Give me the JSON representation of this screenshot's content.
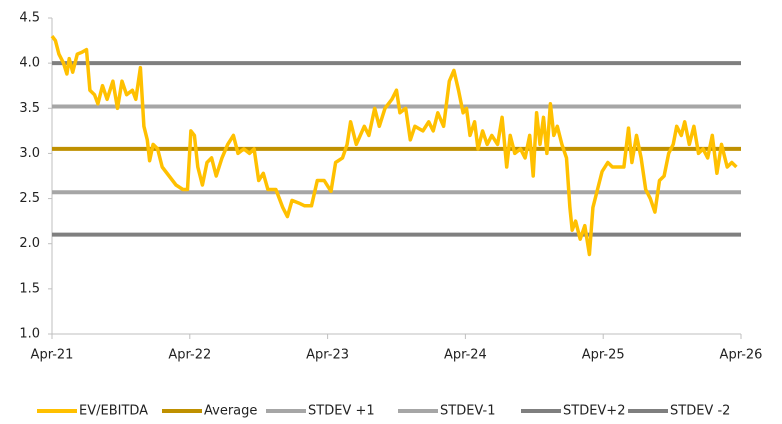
{
  "chart_data": {
    "type": "line",
    "x": [
      0,
      0.3,
      0.6,
      1,
      1.3,
      1.5,
      1.8,
      2.2,
      2.6,
      3.0,
      3.3,
      3.7,
      4,
      4.4,
      4.8,
      5.3,
      5.7,
      6.1,
      6.5,
      7,
      7.3,
      7.7,
      8.0,
      8.3,
      8.5,
      8.8,
      9.2,
      9.6,
      10.2,
      10.8,
      11.4,
      11.8,
      12.1,
      12.4,
      12.7,
      13.1,
      13.5,
      13.9,
      14.3,
      14.8,
      15.3,
      15.8,
      16.2,
      16.7,
      17.2,
      17.6,
      18.0,
      18.4,
      18.8,
      19.5,
      20.1,
      20.5,
      20.9,
      21.5,
      22,
      22.6,
      23.1,
      23.7,
      24.3,
      24.7,
      25.3,
      25.7,
      26,
      26.5,
      27.2,
      27.6,
      28.1,
      28.5,
      29,
      29.6,
      30,
      30.3,
      30.8,
      31.2,
      31.6,
      32.3,
      32.8,
      33.2,
      33.6,
      34.1,
      34.6,
      35,
      35.4,
      35.8,
      36.1,
      36.4,
      36.8,
      37.1,
      37.5,
      37.9,
      38.3,
      38.8,
      39.2,
      39.6,
      39.9,
      40.3,
      40.8,
      41.2,
      41.6,
      41.9,
      42.2,
      42.5,
      42.8,
      43.1,
      43.4,
      43.7,
      44.0,
      44.4,
      44.8,
      45.1,
      45.3,
      45.6,
      46,
      46.4,
      46.8,
      47.1,
      47.5,
      47.9,
      48.4,
      48.8,
      49.3,
      49.8,
      50.2,
      50.5,
      50.9,
      51.3,
      51.7,
      52.1,
      52.5,
      52.9,
      53.3,
      53.7,
      54.1,
      54.4,
      54.8,
      55.1,
      55.5,
      55.9,
      56.3,
      56.7,
      57.1,
      57.5,
      57.9,
      58.3,
      58.8,
      59.2,
      59.6
    ],
    "series": [
      {
        "name": "EV/EBITDA",
        "color": "#ffc000",
        "values": [
          4.3,
          4.25,
          4.1,
          4.0,
          3.88,
          4.05,
          3.9,
          4.1,
          4.12,
          4.15,
          3.7,
          3.65,
          3.55,
          3.75,
          3.6,
          3.8,
          3.5,
          3.8,
          3.65,
          3.7,
          3.6,
          3.95,
          3.3,
          3.15,
          2.92,
          3.1,
          3.05,
          2.85,
          2.75,
          2.65,
          2.6,
          2.6,
          3.25,
          3.2,
          2.85,
          2.65,
          2.9,
          2.95,
          2.75,
          2.95,
          3.1,
          3.2,
          3.0,
          3.05,
          3.0,
          3.05,
          2.7,
          2.78,
          2.6,
          2.6,
          2.4,
          2.3,
          2.48,
          2.45,
          2.42,
          2.42,
          2.7,
          2.7,
          2.58,
          2.9,
          2.95,
          3.1,
          3.35,
          3.1,
          3.3,
          3.2,
          3.5,
          3.3,
          3.5,
          3.6,
          3.7,
          3.45,
          3.5,
          3.15,
          3.3,
          3.25,
          3.35,
          3.25,
          3.45,
          3.3,
          3.8,
          3.92,
          3.7,
          3.45,
          3.5,
          3.2,
          3.35,
          3.05,
          3.25,
          3.1,
          3.2,
          3.1,
          3.4,
          2.85,
          3.2,
          3.0,
          3.05,
          2.95,
          3.2,
          2.75,
          3.45,
          3.1,
          3.4,
          3.0,
          3.55,
          3.2,
          3.3,
          3.1,
          2.95,
          2.4,
          2.15,
          2.25,
          2.05,
          2.2,
          1.88,
          2.4,
          2.6,
          2.8,
          2.9,
          2.85,
          2.85,
          2.85,
          3.28,
          2.9,
          3.2,
          2.95,
          2.6,
          2.5,
          2.35,
          2.7,
          2.75,
          3.0,
          3.1,
          3.3,
          3.2,
          3.35,
          3.1,
          3.3,
          3.0,
          3.05,
          2.95,
          3.2,
          2.78,
          3.1,
          2.85,
          2.9,
          2.85
        ]
      }
    ],
    "reference_lines": [
      {
        "name": "Average",
        "color": "#bf9000",
        "value": 3.05
      },
      {
        "name": "STDEV +1",
        "color": "#a6a6a6",
        "value": 3.52
      },
      {
        "name": "STDEV-1",
        "color": "#a6a6a6",
        "value": 2.57
      },
      {
        "name": "STDEV+2",
        "color": "#7f7f7f",
        "value": 4.0
      },
      {
        "name": "STDEV -2",
        "color": "#7f7f7f",
        "value": 2.1
      }
    ],
    "xlim": [
      0,
      60
    ],
    "xticks": [
      {
        "value": 0,
        "label": "Apr-21"
      },
      {
        "value": 12,
        "label": "Apr-22"
      },
      {
        "value": 24,
        "label": "Apr-23"
      },
      {
        "value": 36,
        "label": "Apr-24"
      },
      {
        "value": 48,
        "label": "Apr-25"
      },
      {
        "value": 60,
        "label": "Apr-26"
      }
    ],
    "ylim": [
      1.0,
      4.5
    ],
    "yticks": [
      {
        "value": 1.0,
        "label": "1.0"
      },
      1.5,
      {
        "value": 2.0,
        "label": "2.0"
      },
      2.5,
      {
        "value": 3.0,
        "label": "3.0"
      },
      3.5,
      {
        "value": 4.0,
        "label": "4.0"
      },
      4.5
    ],
    "legend": "bottom"
  }
}
